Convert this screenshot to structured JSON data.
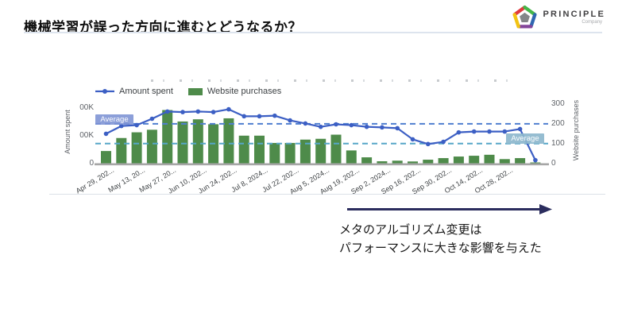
{
  "slide": {
    "title": "機械学習が誤った方向に進むとどうなるか？",
    "logo": {
      "brand": "PRINCIPLE",
      "sub": "Company",
      "pentagon_edge_colors": [
        "#e03a3e",
        "#45b649",
        "#2f67b1",
        "#83459a",
        "#f2c313"
      ],
      "pentagon_center_color": "#848689"
    },
    "annotation": {
      "line1": "メタのアルゴリズム変更は",
      "line2": "パフォーマンスに大きな影響を与えた",
      "arrow_color": "#2b2d5e"
    }
  },
  "chart": {
    "legend": [
      {
        "label": "Amount spent",
        "marker": "line-dot"
      },
      {
        "label": "Website purchases",
        "marker": "bar-swatch"
      }
    ]
  },
  "chart_data": {
    "type": "combo (weekly bar + line)",
    "title": "(chart title cropped at top of pasted screenshot)",
    "colors": {
      "bar": "#4e8b4a",
      "line": "#3c5fc4",
      "avg_line_dark": "#4f7fd0",
      "avg_line_light": "#56a6c8"
    },
    "n_points": 29,
    "x_tick_every": 2,
    "x_tick_labels": [
      "Apr 29, 202...",
      "May 13, 20...",
      "May 27, 20...",
      "Jun 10, 202...",
      "Jun 24, 202...",
      "Jul 8, 2024...",
      "Jul 22, 202...",
      "Aug 5, 2024...",
      "Aug 19, 202...",
      "Sep 2, 2024...",
      "Sep 16, 202...",
      "Sep 30, 202...",
      "Oct 14, 202...",
      "Oct 28, 202..."
    ],
    "series": [
      {
        "name": "Amount spent",
        "type": "line",
        "axis": "left",
        "unit": "K",
        "values": [
          106,
          134,
          137,
          160,
          186,
          184,
          186,
          184,
          194,
          169,
          169,
          171,
          154,
          143,
          131,
          140,
          137,
          131,
          129,
          126,
          86,
          69,
          77,
          111,
          114,
          114,
          114,
          123,
          11
        ]
      },
      {
        "name": "Website purchases",
        "type": "bar",
        "axis": "right",
        "values": [
          62,
          128,
          157,
          170,
          270,
          212,
          223,
          198,
          228,
          140,
          140,
          103,
          103,
          120,
          124,
          145,
          65,
          30,
          10,
          13,
          9,
          18,
          26,
          34,
          38,
          43,
          21,
          26,
          4
        ]
      }
    ],
    "left_axis": {
      "title": "Amount spent",
      "visible_tick_labels": [
        "00K",
        "00K",
        "0"
      ],
      "tick_values_k": [
        200,
        100,
        0
      ],
      "note": "labels cropped on left edge of pasted screenshot"
    },
    "right_axis": {
      "title": "Website purchases",
      "tick_labels": [
        "300",
        "200",
        "100",
        "0"
      ],
      "tick_values": [
        300,
        200,
        100,
        0
      ],
      "range": [
        0,
        300
      ]
    },
    "average_lines": [
      {
        "series": "Amount spent",
        "label": "Average",
        "value_on_right_axis_scale": 200,
        "style": "dashed-dark-blue"
      },
      {
        "series": "Website purchases",
        "label": "Average",
        "value_on_right_axis_scale": 100,
        "style": "dashed-light-blue"
      }
    ],
    "legend_position": "top-left",
    "grid": "off"
  }
}
